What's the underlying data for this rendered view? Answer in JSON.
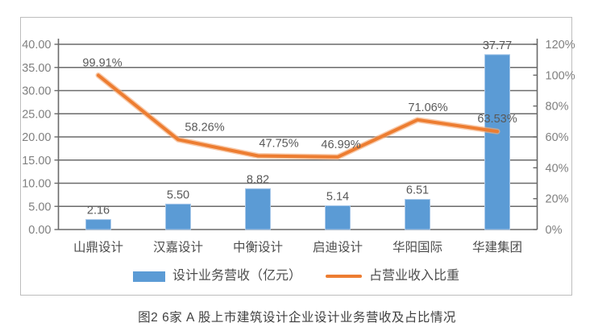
{
  "figure": {
    "caption": "图2 6家 A 股上市建筑设计企业设计业务营收及占比情况"
  },
  "legend": {
    "bar_label": "设计业务营收（亿元）",
    "line_label": "占营业收入比重"
  },
  "colors": {
    "bar_fill": "#5B9BD5",
    "bar_border": "#A9C9EA",
    "line": "#ED7D31",
    "line_halo": "#F4AE7C",
    "grid": "#6a6a6a",
    "axis": "#6a6a6a",
    "frame_border": "#BDBDBD"
  },
  "chart_data": {
    "type": "bar+line combo",
    "categories": [
      "山鼎设计",
      "汉嘉设计",
      "中衡设计",
      "启迪设计",
      "华阳国际",
      "华建集团"
    ],
    "series": [
      {
        "name": "设计业务营收（亿元）",
        "type": "bar",
        "axis": "left",
        "values": [
          2.16,
          5.5,
          8.82,
          5.14,
          6.51,
          37.77
        ],
        "labels": [
          "2.16",
          "5.50",
          "8.82",
          "5.14",
          "6.51",
          "37.77"
        ]
      },
      {
        "name": "占营业收入比重",
        "type": "line",
        "axis": "right",
        "values": [
          99.91,
          58.26,
          47.75,
          46.99,
          71.06,
          63.53
        ],
        "labels": [
          "99.91%",
          "58.26%",
          "47.75%",
          "46.99%",
          "71.06%",
          "63.53%"
        ]
      }
    ],
    "left_axis": {
      "min": 0,
      "max": 40,
      "step": 5,
      "tick_labels": [
        "40.00",
        "35.00",
        "30.00",
        "25.00",
        "20.00",
        "15.00",
        "10.00",
        "5.00",
        "0.00"
      ]
    },
    "right_axis": {
      "min": 0,
      "max": 120,
      "step": 20,
      "tick_labels": [
        "120%",
        "100%",
        "80%",
        "60%",
        "40%",
        "20%",
        "0%"
      ]
    },
    "grid": true,
    "legend_position": "bottom"
  }
}
